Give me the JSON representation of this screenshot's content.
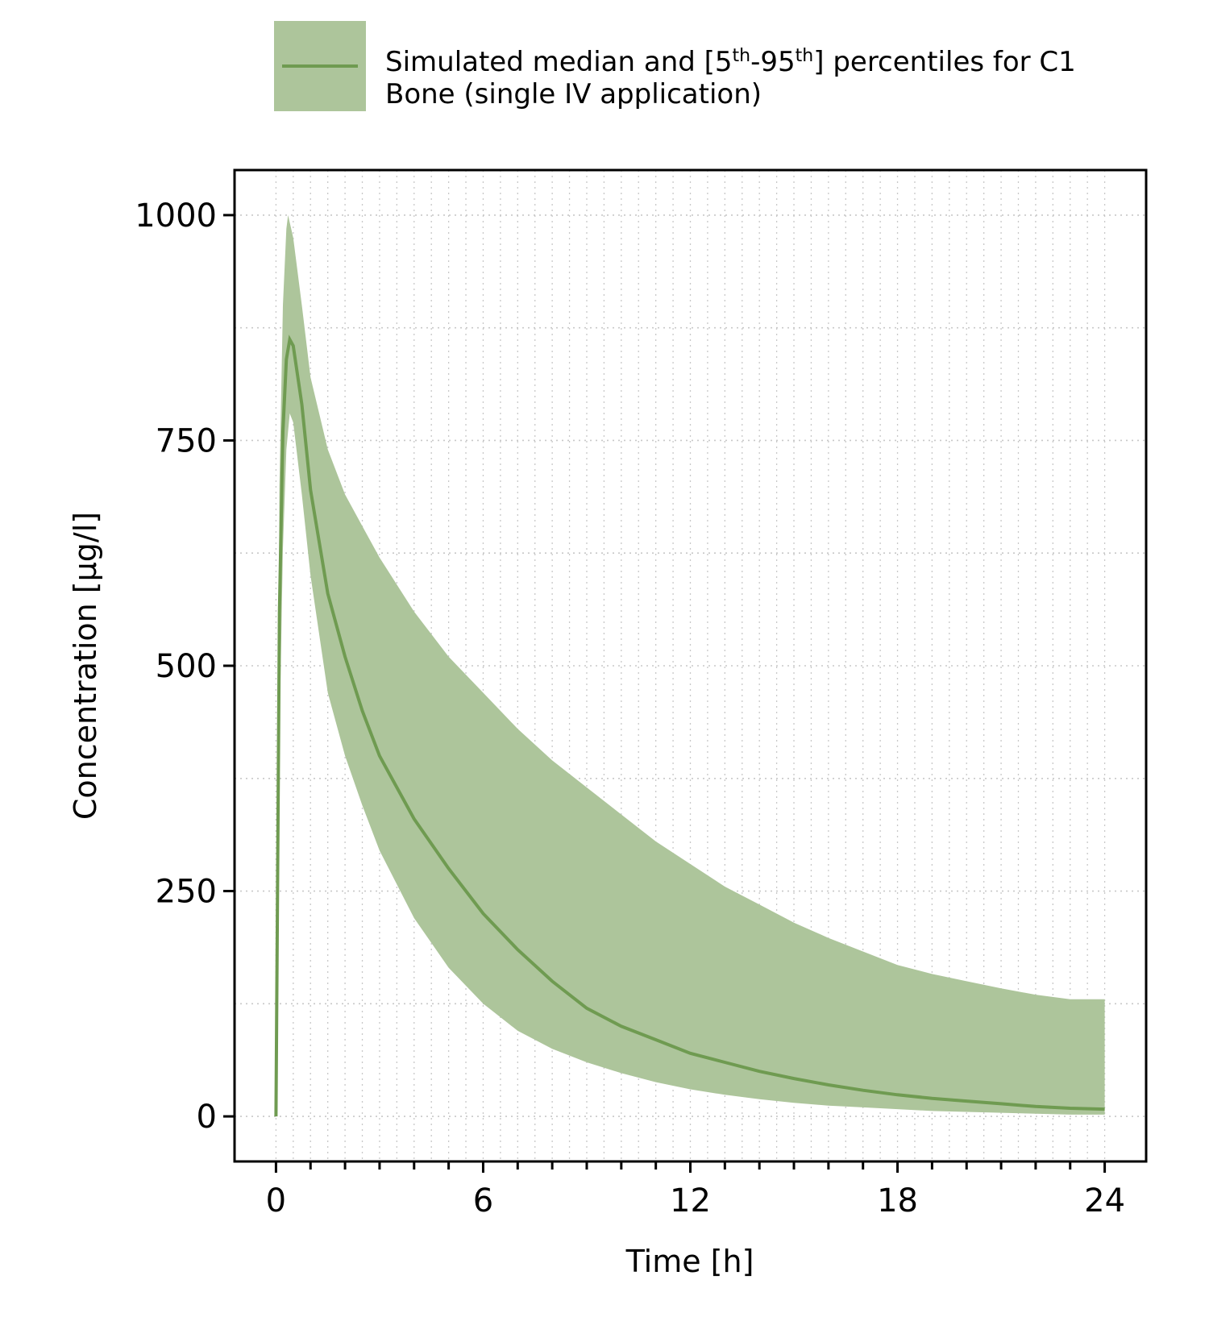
{
  "chart_data": {
    "type": "area",
    "legend": {
      "placement": "top",
      "line1_main": "Simulated median and [5",
      "line1_sup1": "th",
      "line1_mid": "-95",
      "line1_sup2": "th",
      "line1_end": "] percentiles for C1",
      "line2": "Bone (single IV application)"
    },
    "xlabel": "Time [h]",
    "ylabel": "Concentration [µg/l]",
    "xlim": [
      -1.2,
      25.2
    ],
    "ylim": [
      -50,
      1050
    ],
    "x_ticks": [
      0,
      6,
      12,
      18,
      24
    ],
    "x_tick_labels": [
      "0",
      "6",
      "12",
      "18",
      "24"
    ],
    "x_minor_step": 1,
    "y_ticks": [
      0,
      250,
      500,
      750,
      1000
    ],
    "y_tick_labels": [
      "0",
      "250",
      "500",
      "750",
      "1000"
    ],
    "y_minor_step": 125,
    "grid": true,
    "colors": {
      "band": "#adc59b",
      "line": "#6f9b51",
      "grid": "#c8c8c8"
    },
    "series": [
      {
        "role": "median",
        "x": [
          0,
          0.1,
          0.2,
          0.3,
          0.4,
          0.5,
          0.75,
          1,
          1.5,
          2,
          2.5,
          3,
          4,
          5,
          6,
          7,
          8,
          9,
          10,
          11,
          12,
          13,
          14,
          15,
          16,
          17,
          18,
          19,
          20,
          21,
          22,
          23,
          24
        ],
        "values": [
          0,
          560,
          760,
          840,
          862,
          855,
          790,
          695,
          580,
          510,
          450,
          400,
          330,
          275,
          225,
          185,
          150,
          120,
          100,
          85,
          70,
          60,
          50,
          42,
          35,
          29,
          24,
          20,
          17,
          14,
          11,
          9,
          8
        ]
      },
      {
        "role": "p95",
        "x": [
          0,
          0.1,
          0.2,
          0.3,
          0.35,
          0.5,
          0.75,
          1,
          1.5,
          2,
          2.5,
          3,
          4,
          5,
          6,
          7,
          8,
          9,
          10,
          11,
          12,
          13,
          14,
          15,
          16,
          17,
          18,
          19,
          20,
          21,
          22,
          23,
          24
        ],
        "values": [
          0,
          700,
          900,
          985,
          1000,
          975,
          900,
          820,
          740,
          690,
          655,
          620,
          560,
          510,
          470,
          430,
          395,
          365,
          335,
          305,
          280,
          255,
          235,
          215,
          198,
          183,
          168,
          158,
          150,
          142,
          135,
          130,
          130
        ]
      },
      {
        "role": "p5",
        "x": [
          0,
          0.1,
          0.2,
          0.3,
          0.4,
          0.5,
          0.75,
          1,
          1.5,
          2,
          2.5,
          3,
          4,
          5,
          6,
          7,
          8,
          9,
          10,
          11,
          12,
          13,
          14,
          15,
          16,
          17,
          18,
          19,
          20,
          21,
          22,
          23,
          24
        ],
        "values": [
          0,
          420,
          630,
          740,
          780,
          770,
          690,
          600,
          470,
          400,
          345,
          295,
          220,
          165,
          125,
          95,
          75,
          60,
          48,
          38,
          30,
          24,
          19,
          15,
          12,
          10,
          8,
          6,
          5,
          4,
          3,
          2,
          2
        ]
      }
    ]
  }
}
